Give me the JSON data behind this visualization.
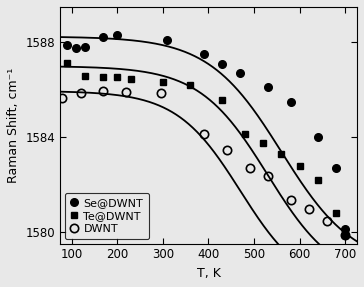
{
  "title": "",
  "xlabel": "T, K",
  "ylabel": "Raman Shift, cm⁻¹",
  "xlim": [
    75,
    725
  ],
  "ylim": [
    1579.5,
    1589.5
  ],
  "yticks": [
    1580,
    1584,
    1588
  ],
  "xticks": [
    100,
    200,
    300,
    400,
    500,
    600,
    700
  ],
  "Se_x": [
    90,
    110,
    130,
    170,
    200,
    310,
    390,
    430,
    470,
    530,
    580,
    640,
    680,
    700
  ],
  "Se_y": [
    1587.9,
    1587.75,
    1587.8,
    1588.25,
    1588.3,
    1588.1,
    1587.5,
    1587.1,
    1586.7,
    1586.1,
    1585.5,
    1584.0,
    1582.7,
    1580.1
  ],
  "Te_x": [
    90,
    130,
    170,
    200,
    230,
    300,
    360,
    430,
    480,
    520,
    560,
    600,
    640,
    680,
    700
  ],
  "Te_y": [
    1587.15,
    1586.6,
    1586.55,
    1586.55,
    1586.45,
    1586.35,
    1586.2,
    1585.55,
    1584.15,
    1583.75,
    1583.3,
    1582.8,
    1582.2,
    1580.8,
    1579.85
  ],
  "DWNT_x": [
    80,
    120,
    170,
    220,
    295,
    390,
    440,
    490,
    530,
    580,
    620,
    660,
    700
  ],
  "DWNT_y": [
    1585.65,
    1585.85,
    1585.95,
    1585.9,
    1585.85,
    1584.15,
    1583.45,
    1582.7,
    1582.35,
    1581.35,
    1580.95,
    1580.45,
    1579.85
  ],
  "marker_color": "#000000",
  "line_color": "#000000",
  "bg_color": "#e8e8e8",
  "legend_labels": [
    "Se@DWNT",
    "Te@DWNT",
    "DWNT"
  ]
}
